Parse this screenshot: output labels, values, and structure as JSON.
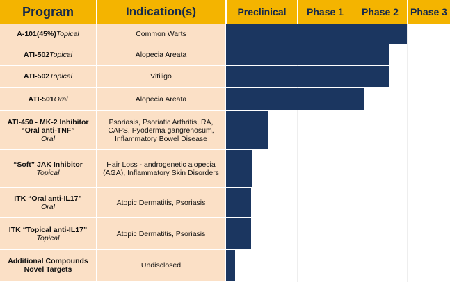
{
  "header": {
    "program": "Program",
    "indication": "Indication(s)"
  },
  "chart_data": {
    "type": "bar",
    "orientation": "horizontal",
    "phases": [
      "Preclinical",
      "Phase 1",
      "Phase 2",
      "Phase 3"
    ],
    "colors": {
      "bar": "#1b3660",
      "header": "#f4b400",
      "row": "#fbe0c6",
      "header_text": "#15294b"
    },
    "rows": [
      {
        "program": "A-101(45%)",
        "program_inline": "Topical",
        "program_sub": "",
        "indication": "Common Warts",
        "progress": 3.0
      },
      {
        "program": "ATI-502",
        "program_inline": "Topical",
        "program_sub": "",
        "indication": "Alopecia Areata",
        "progress": 2.68
      },
      {
        "program": "ATI-502",
        "program_inline": "Topical",
        "program_sub": "",
        "indication": "Vitiligo",
        "progress": 2.68
      },
      {
        "program": "ATI-501",
        "program_inline": "Oral",
        "program_sub": "",
        "indication": "Alopecia Areata",
        "progress": 2.2
      },
      {
        "program": "ATI-450 - MK-2 Inhibitor\n“Oral anti-TNF”",
        "program_inline": "",
        "program_sub": "Oral",
        "indication": "Psoriasis, Psoriatic Arthritis, RA, CAPS, Pyoderma gangrenosum, Inflammatory Bowel Disease",
        "progress": 0.6
      },
      {
        "program": "“Soft” JAK Inhibitor",
        "program_inline": "",
        "program_sub": "Topical",
        "indication": "Hair Loss - androgenetic alopecia (AGA), Inflammatory Skin Disorders",
        "progress": 0.36
      },
      {
        "program": "ITK “Oral anti-IL17”",
        "program_inline": "",
        "program_sub": "Oral",
        "indication": "Atopic Dermatitis, Psoriasis",
        "progress": 0.35
      },
      {
        "program": "ITK “Topical anti-IL17”",
        "program_inline": "",
        "program_sub": "Topical",
        "indication": "Atopic Dermatitis, Psoriasis",
        "progress": 0.35
      },
      {
        "program": "Additional Compounds\nNovel Targets",
        "program_inline": "",
        "program_sub": "",
        "indication": "Undisclosed",
        "progress": 0.13
      }
    ]
  }
}
